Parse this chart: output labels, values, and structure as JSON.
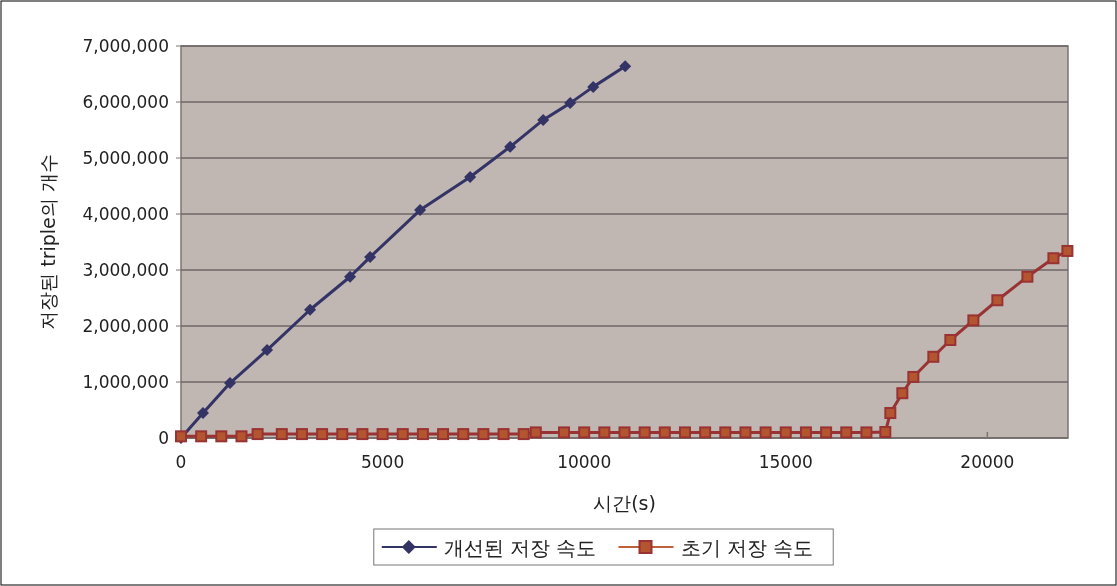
{
  "chart_data": {
    "type": "line",
    "xlabel": "시간(s)",
    "ylabel": "저장된 triple의 개수",
    "xlim": [
      0,
      22000
    ],
    "xticks": [
      0,
      5000,
      10000,
      15000,
      20000
    ],
    "ylim": [
      0,
      7000000
    ],
    "yticks": [
      0,
      {
        "value": 1000000,
        "label": "1,000,000"
      },
      {
        "value": 2000000,
        "label": "2,000,000"
      },
      {
        "value": 3000000,
        "label": "3,000,000"
      },
      {
        "value": 4000000,
        "label": "4,000,000"
      },
      {
        "value": 5000000,
        "label": "5,000,000"
      },
      {
        "value": 6000000,
        "label": "6,000,000"
      },
      {
        "value": 7000000,
        "label": "7,000,000"
      }
    ],
    "grid": "y",
    "legend": "bottom",
    "series": [
      {
        "name": "개선된 저장 속도",
        "color": "#333366",
        "marker": "diamond",
        "x": [
          0,
          546,
          1216,
          2134,
          3201,
          4193,
          4690,
          5930,
          7171,
          8164,
          8983,
          9653,
          10223,
          11017
        ],
        "values": [
          0,
          446000,
          982000,
          1570000,
          2290000,
          2880000,
          3230000,
          4070000,
          4660000,
          5200000,
          5680000,
          5980000,
          6270000,
          6640000
        ]
      },
      {
        "name": "초기 저장 속도",
        "color": "#993333",
        "marker": "square",
        "x": [
          0,
          500,
          1000,
          1500,
          1900,
          2500,
          3000,
          3500,
          4000,
          4500,
          5000,
          5500,
          6000,
          6500,
          7000,
          7500,
          8000,
          8500,
          8800,
          9500,
          10000,
          10500,
          11000,
          11500,
          12000,
          12500,
          13000,
          13500,
          14000,
          14500,
          15000,
          15500,
          16000,
          16500,
          17000,
          17469,
          17593,
          17891,
          18164,
          18660,
          19082,
          19653,
          20248,
          20993,
          21638,
          21985
        ],
        "values": [
          30000,
          30000,
          30000,
          30000,
          70000,
          70000,
          70000,
          70000,
          70000,
          70000,
          70000,
          70000,
          70000,
          70000,
          70000,
          70000,
          70000,
          70000,
          100000,
          100000,
          100000,
          100000,
          100000,
          100000,
          100000,
          100000,
          100000,
          100000,
          100000,
          100000,
          100000,
          100000,
          100000,
          100000,
          100000,
          107000,
          446000,
          800000,
          1090000,
          1450000,
          1750000,
          2100000,
          2460000,
          2880000,
          3210000,
          3340000
        ]
      }
    ]
  }
}
